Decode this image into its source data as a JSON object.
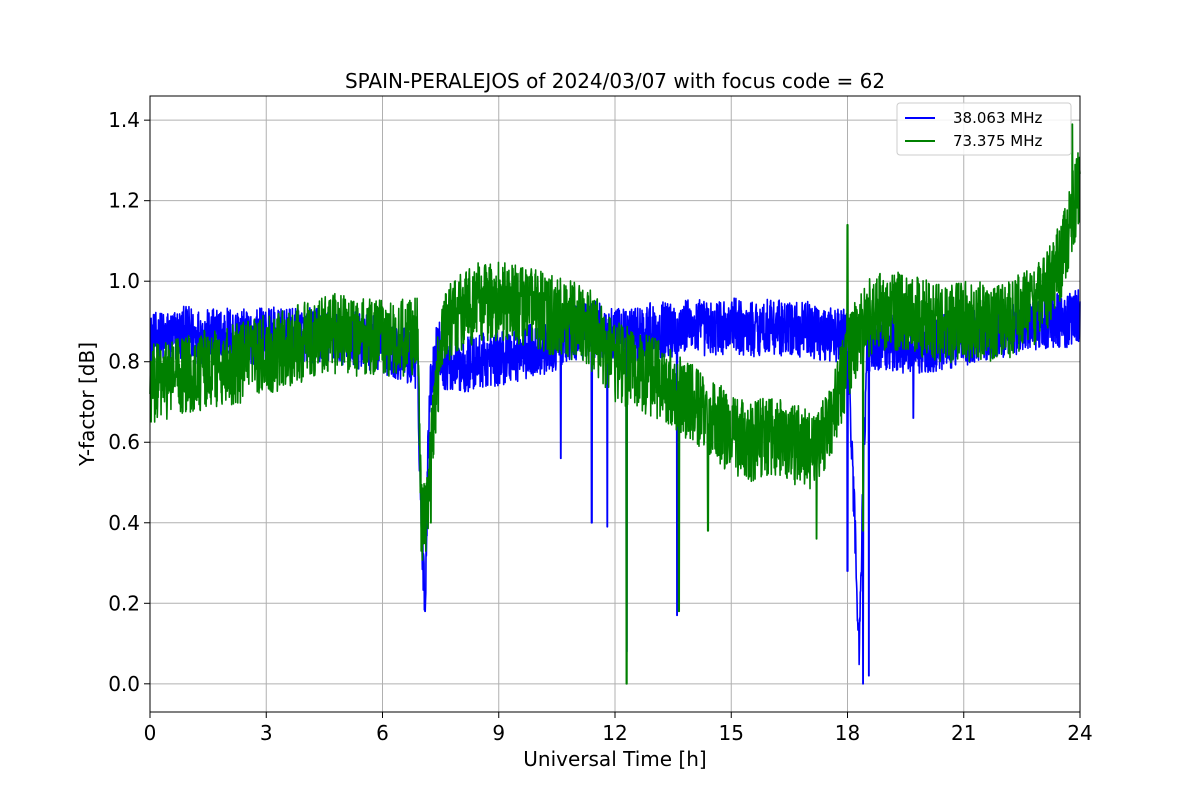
{
  "chart_data": {
    "type": "line",
    "title": "SPAIN-PERALEJOS of 2024/03/07 with focus code = 62",
    "xlabel": "Universal Time [h]",
    "ylabel": "Y-factor [dB]",
    "xlim": [
      0,
      24
    ],
    "ylim": [
      -0.07,
      1.46
    ],
    "xticks": [
      0,
      3,
      6,
      9,
      12,
      15,
      18,
      21,
      24
    ],
    "xtick_labels": [
      "0",
      "3",
      "6",
      "9",
      "12",
      "15",
      "18",
      "21",
      "24"
    ],
    "yticks": [
      0.0,
      0.2,
      0.4,
      0.6,
      0.8,
      1.0,
      1.2,
      1.4
    ],
    "ytick_labels": [
      "0.0",
      "0.2",
      "0.4",
      "0.6",
      "0.8",
      "1.0",
      "1.2",
      "1.4"
    ],
    "grid": true,
    "legend": "top-right",
    "series": [
      {
        "name": "38.063 MHz",
        "color": "#0000ff",
        "x": [
          0,
          0.5,
          1,
          1.5,
          2,
          2.5,
          3,
          3.5,
          4,
          4.5,
          5,
          5.5,
          6,
          6.5,
          6.9,
          7.0,
          7.1,
          7.2,
          7.4,
          7.6,
          8,
          8.5,
          9,
          9.5,
          10,
          10.5,
          11,
          11.5,
          12,
          12.5,
          13,
          13.5,
          14,
          14.5,
          15,
          15.5,
          16,
          16.5,
          17,
          17.5,
          18,
          18.3,
          18.5,
          18.7,
          19,
          19.5,
          20,
          20.5,
          21,
          21.5,
          22,
          22.5,
          23,
          23.5,
          24
        ],
        "y": [
          0.85,
          0.86,
          0.87,
          0.86,
          0.87,
          0.86,
          0.87,
          0.86,
          0.87,
          0.86,
          0.86,
          0.85,
          0.84,
          0.82,
          0.8,
          0.4,
          0.2,
          0.7,
          0.85,
          0.8,
          0.79,
          0.8,
          0.81,
          0.82,
          0.83,
          0.85,
          0.87,
          0.88,
          0.86,
          0.87,
          0.88,
          0.88,
          0.89,
          0.88,
          0.89,
          0.88,
          0.89,
          0.88,
          0.88,
          0.87,
          0.86,
          0.1,
          0.84,
          0.85,
          0.85,
          0.84,
          0.84,
          0.85,
          0.86,
          0.87,
          0.88,
          0.89,
          0.9,
          0.9,
          0.91
        ],
        "range": 0.07,
        "spikes": [
          [
            7.1,
            0.18
          ],
          [
            10.6,
            0.56
          ],
          [
            11.4,
            0.4
          ],
          [
            11.8,
            0.39
          ],
          [
            12.3,
            0.08
          ],
          [
            13.6,
            0.17
          ],
          [
            18.0,
            0.28
          ],
          [
            18.4,
            0.0
          ],
          [
            18.55,
            0.02
          ],
          [
            19.7,
            0.66
          ]
        ]
      },
      {
        "name": "73.375 MHz",
        "color": "#008000",
        "x": [
          0,
          0.5,
          1,
          1.5,
          2,
          2.5,
          3,
          3.5,
          4,
          4.5,
          5,
          5.5,
          6,
          6.5,
          6.9,
          7.0,
          7.1,
          7.2,
          7.4,
          7.6,
          8,
          8.5,
          9,
          9.5,
          10,
          10.5,
          11,
          11.5,
          12,
          12.5,
          13,
          13.5,
          14,
          14.5,
          15,
          15.5,
          16,
          16.5,
          17,
          17.5,
          18,
          18.3,
          18.5,
          18.7,
          19,
          19.5,
          20,
          20.5,
          21,
          21.5,
          22,
          22.5,
          23,
          23.5,
          24
        ],
        "y": [
          0.74,
          0.76,
          0.77,
          0.78,
          0.79,
          0.8,
          0.82,
          0.83,
          0.85,
          0.87,
          0.87,
          0.86,
          0.86,
          0.86,
          0.87,
          0.4,
          0.4,
          0.5,
          0.75,
          0.88,
          0.92,
          0.95,
          0.95,
          0.94,
          0.93,
          0.91,
          0.9,
          0.87,
          0.8,
          0.78,
          0.76,
          0.73,
          0.7,
          0.66,
          0.62,
          0.6,
          0.62,
          0.6,
          0.58,
          0.63,
          0.8,
          0.88,
          0.9,
          0.92,
          0.93,
          0.92,
          0.91,
          0.89,
          0.9,
          0.9,
          0.9,
          0.92,
          0.95,
          1.05,
          1.25
        ],
        "range": 0.1,
        "spikes": [
          [
            7.0,
            0.33
          ],
          [
            7.05,
            0.35
          ],
          [
            7.25,
            0.4
          ],
          [
            12.3,
            0.0
          ],
          [
            13.65,
            0.18
          ],
          [
            14.4,
            0.38
          ],
          [
            17.2,
            0.36
          ],
          [
            18.0,
            1.14
          ],
          [
            18.4,
            0.38
          ],
          [
            23.8,
            1.39
          ]
        ]
      }
    ]
  }
}
